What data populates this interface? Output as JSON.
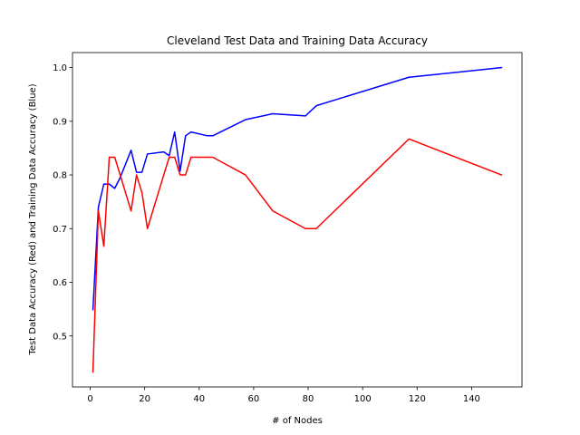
{
  "chart_data": {
    "type": "line",
    "title": "Cleveland Test Data and Training Data Accuracy",
    "xlabel": "# of Nodes",
    "ylabel": "Test Data Accuracy (Red) and Training Data Accuracy (Blue)",
    "xlim": [
      -6.5,
      158.5
    ],
    "ylim": [
      0.405,
      1.028
    ],
    "xticks": [
      0,
      20,
      40,
      60,
      80,
      100,
      120,
      140
    ],
    "yticks": [
      0.5,
      0.6,
      0.7,
      0.8,
      0.9,
      1.0
    ],
    "ytick_labels": [
      "0.5",
      "0.6",
      "0.7",
      "0.8",
      "0.9",
      "1.0"
    ],
    "grid": false,
    "legend": "none",
    "series": [
      {
        "color": "#0000ff",
        "x": [
          1,
          3,
          5,
          7,
          9,
          11,
          15,
          17,
          19,
          21,
          27,
          29,
          31,
          33,
          35,
          37,
          43,
          45,
          57,
          67,
          79,
          83,
          117,
          151
        ],
        "y": [
          0.549,
          0.74,
          0.783,
          0.783,
          0.775,
          0.795,
          0.846,
          0.805,
          0.805,
          0.839,
          0.843,
          0.836,
          0.88,
          0.807,
          0.873,
          0.88,
          0.873,
          0.873,
          0.903,
          0.914,
          0.91,
          0.929,
          0.982,
          1.0
        ]
      },
      {
        "color": "#ff0000",
        "x": [
          1,
          3,
          5,
          7,
          9,
          11,
          15,
          17,
          19,
          21,
          27,
          29,
          31,
          33,
          35,
          37,
          43,
          45,
          57,
          67,
          79,
          83,
          117,
          151
        ],
        "y": [
          0.433,
          0.733,
          0.667,
          0.833,
          0.833,
          0.8,
          0.733,
          0.8,
          0.767,
          0.7,
          0.8,
          0.833,
          0.833,
          0.8,
          0.8,
          0.833,
          0.833,
          0.833,
          0.8,
          0.733,
          0.7,
          0.7,
          0.867,
          0.8
        ]
      }
    ]
  }
}
